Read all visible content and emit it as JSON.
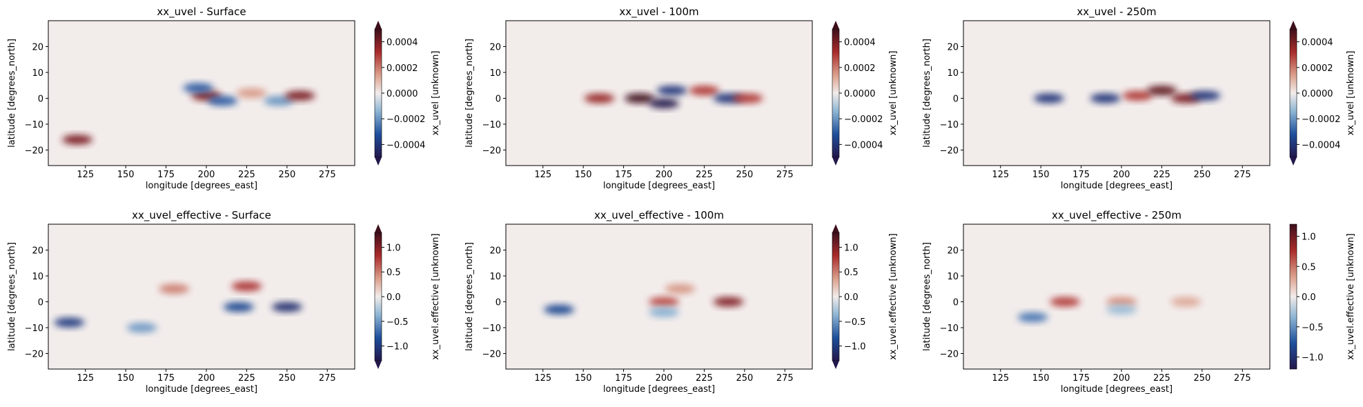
{
  "chart_data": [
    {
      "type": "heatmap",
      "title": "xx_uvel - Surface",
      "xlabel": "longitude [degrees_east]",
      "ylabel": "latitude [degrees_north]",
      "xlim": [
        102,
        292
      ],
      "ylim": [
        -26,
        30
      ],
      "x_ticks": [
        125,
        150,
        175,
        200,
        225,
        250,
        275
      ],
      "y_ticks": [
        -20,
        -10,
        0,
        10,
        20
      ],
      "colorbar": {
        "label": "xx_uvel [unknown]",
        "range": [
          -0.0005,
          0.0005
        ],
        "ticks": [
          -0.0004,
          -0.0002,
          0.0,
          0.0002,
          0.0004
        ],
        "tick_labels": [
          "−0.0004",
          "−0.0002",
          "0.0000",
          "0.0002",
          "0.0004"
        ],
        "extend": "both"
      },
      "features": [
        {
          "lon": 200,
          "lat": 1,
          "value": 0.0004
        },
        {
          "lon": 195,
          "lat": 4,
          "value": -0.0003
        },
        {
          "lon": 210,
          "lat": -1,
          "value": -0.0003
        },
        {
          "lon": 228,
          "lat": 2,
          "value": 0.00015
        },
        {
          "lon": 245,
          "lat": -1,
          "value": -0.0002
        },
        {
          "lon": 258,
          "lat": 1,
          "value": 0.0004
        },
        {
          "lon": 120,
          "lat": -16,
          "value": 0.0004
        }
      ]
    },
    {
      "type": "heatmap",
      "title": "xx_uvel - 100m",
      "xlabel": "longitude [degrees_east]",
      "ylabel": "latitude [degrees_north]",
      "xlim": [
        102,
        292
      ],
      "ylim": [
        -26,
        30
      ],
      "x_ticks": [
        125,
        150,
        175,
        200,
        225,
        250,
        275
      ],
      "y_ticks": [
        -20,
        -10,
        0,
        10,
        20
      ],
      "colorbar": {
        "label": "xx_uvel [unknown]",
        "range": [
          -0.0005,
          0.0005
        ],
        "ticks": [
          -0.0004,
          -0.0002,
          0.0,
          0.0002,
          0.0004
        ],
        "tick_labels": [
          "−0.0004",
          "−0.0002",
          "0.0000",
          "0.0002",
          "0.0004"
        ],
        "extend": "both"
      },
      "features": [
        {
          "lon": 160,
          "lat": 0,
          "value": 0.00035
        },
        {
          "lon": 185,
          "lat": 0,
          "value": 0.0005
        },
        {
          "lon": 200,
          "lat": -2,
          "value": -0.0005
        },
        {
          "lon": 205,
          "lat": 3,
          "value": -0.0004
        },
        {
          "lon": 225,
          "lat": 3,
          "value": 0.0003
        },
        {
          "lon": 240,
          "lat": 0,
          "value": -0.0004
        },
        {
          "lon": 252,
          "lat": 0,
          "value": 0.0003
        }
      ]
    },
    {
      "type": "heatmap",
      "title": "xx_uvel - 250m",
      "xlabel": "longitude [degrees_east]",
      "ylabel": "latitude [degrees_north]",
      "xlim": [
        102,
        292
      ],
      "ylim": [
        -26,
        30
      ],
      "x_ticks": [
        125,
        150,
        175,
        200,
        225,
        250,
        275
      ],
      "y_ticks": [
        -20,
        -10,
        0,
        10,
        20
      ],
      "colorbar": {
        "label": "xx_uvel [unknown]",
        "range": [
          -0.0005,
          0.0005
        ],
        "ticks": [
          -0.0004,
          -0.0002,
          0.0,
          0.0002,
          0.0004
        ],
        "tick_labels": [
          "−0.0004",
          "−0.0002",
          "0.0000",
          "0.0002",
          "0.0004"
        ],
        "extend": "both"
      },
      "features": [
        {
          "lon": 155,
          "lat": 0,
          "value": -0.0004
        },
        {
          "lon": 190,
          "lat": 0,
          "value": -0.0004
        },
        {
          "lon": 210,
          "lat": 1,
          "value": 0.0003
        },
        {
          "lon": 225,
          "lat": 3,
          "value": 0.00045
        },
        {
          "lon": 240,
          "lat": 0,
          "value": 0.0004
        },
        {
          "lon": 252,
          "lat": 1,
          "value": -0.0004
        }
      ]
    },
    {
      "type": "heatmap",
      "title": "xx_uvel_effective - Surface",
      "xlabel": "longitude [degrees_east]",
      "ylabel": "latitude [degrees_north]",
      "xlim": [
        102,
        292
      ],
      "ylim": [
        -26,
        30
      ],
      "x_ticks": [
        125,
        150,
        175,
        200,
        225,
        250,
        275
      ],
      "y_ticks": [
        -20,
        -10,
        0,
        10,
        20
      ],
      "colorbar": {
        "label": "xx_uvel.effective [unknown]",
        "range": [
          -1.3,
          1.3
        ],
        "ticks": [
          -1.0,
          -0.5,
          0.0,
          0.5,
          1.0
        ],
        "tick_labels": [
          "−1.0",
          "−0.5",
          "0.0",
          "0.5",
          "1.0"
        ],
        "extend": "both"
      },
      "features": [
        {
          "lon": 180,
          "lat": 5,
          "value": 0.5
        },
        {
          "lon": 225,
          "lat": 6,
          "value": 0.8
        },
        {
          "lon": 220,
          "lat": -2,
          "value": -0.9
        },
        {
          "lon": 250,
          "lat": -2,
          "value": -1.1
        },
        {
          "lon": 160,
          "lat": -10,
          "value": -0.5
        },
        {
          "lon": 115,
          "lat": -8,
          "value": -1.0
        }
      ]
    },
    {
      "type": "heatmap",
      "title": "xx_uvel_effective - 100m",
      "xlabel": "longitude [degrees_east]",
      "ylabel": "latitude [degrees_north]",
      "xlim": [
        102,
        292
      ],
      "ylim": [
        -26,
        30
      ],
      "x_ticks": [
        125,
        150,
        175,
        200,
        225,
        250,
        275
      ],
      "y_ticks": [
        -20,
        -10,
        0,
        10,
        20
      ],
      "colorbar": {
        "label": "xx_uvel.effective [unknown]",
        "range": [
          -1.3,
          1.3
        ],
        "ticks": [
          -1.0,
          -0.5,
          0.0,
          0.5,
          1.0
        ],
        "tick_labels": [
          "−1.0",
          "−0.5",
          "0.0",
          "0.5",
          "1.0"
        ],
        "extend": "both"
      },
      "features": [
        {
          "lon": 200,
          "lat": 0,
          "value": 0.7
        },
        {
          "lon": 240,
          "lat": 0,
          "value": 1.0
        },
        {
          "lon": 210,
          "lat": 5,
          "value": 0.4
        },
        {
          "lon": 200,
          "lat": -4,
          "value": -0.4
        },
        {
          "lon": 135,
          "lat": -3,
          "value": -0.9
        }
      ]
    },
    {
      "type": "heatmap",
      "title": "xx_uvel_effective - 250m",
      "xlabel": "longitude [degrees_east]",
      "ylabel": "latitude [degrees_north]",
      "xlim": [
        102,
        292
      ],
      "ylim": [
        -26,
        30
      ],
      "x_ticks": [
        125,
        150,
        175,
        200,
        225,
        250,
        275
      ],
      "y_ticks": [
        -20,
        -10,
        0,
        10,
        20
      ],
      "colorbar": {
        "label": "xx_uvel.effective [unknown]",
        "range": [
          -1.2,
          1.2
        ],
        "ticks": [
          -1.0,
          -0.5,
          0.0,
          0.5,
          1.0
        ],
        "tick_labels": [
          "−1.0",
          "−0.5",
          "0.0",
          "0.5",
          "1.0"
        ],
        "extend": "neither"
      },
      "features": [
        {
          "lon": 165,
          "lat": 0,
          "value": 0.7
        },
        {
          "lon": 200,
          "lat": 0,
          "value": 0.4
        },
        {
          "lon": 240,
          "lat": 0,
          "value": 0.3
        },
        {
          "lon": 200,
          "lat": -3,
          "value": -0.3
        },
        {
          "lon": 145,
          "lat": -6,
          "value": -0.6
        }
      ]
    }
  ],
  "colors": {
    "neg_deep": "#23174a",
    "neg": "#1e4f9c",
    "neg_light": "#8fb6d4",
    "zero": "#f2eceb",
    "pos_light": "#dba08c",
    "pos": "#a92b2b",
    "pos_deep": "#3d0f1b",
    "background": "#f2eceb"
  }
}
